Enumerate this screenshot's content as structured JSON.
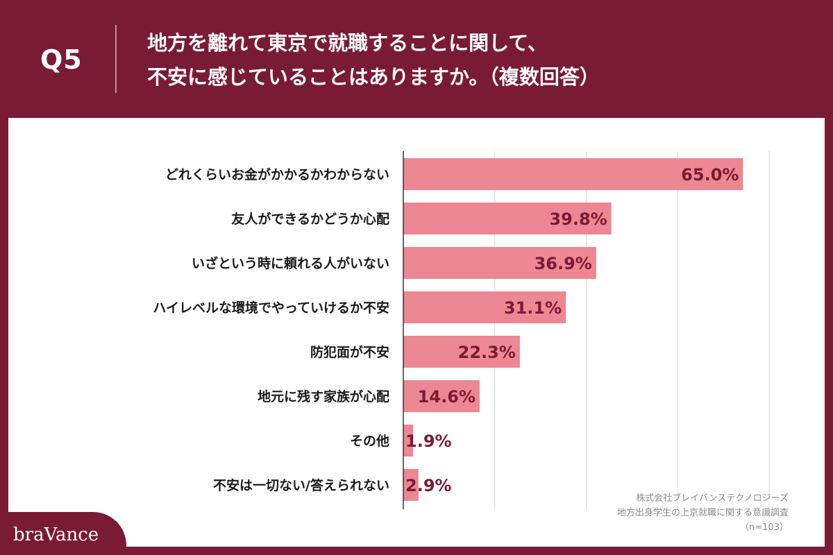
{
  "header": {
    "question_label": "Q5",
    "question_line1": "地方を離れて東京で就職することに関して、",
    "question_line2": "不安に感じていることはありますか。（複数回答）"
  },
  "chart_data": {
    "type": "bar",
    "orientation": "horizontal",
    "categories": [
      "どれくらいお金がかかるかわからない",
      "友人ができるかどうか心配",
      "いざという時に頼れる人がいない",
      "ハイレベルな環境でやっていけるか不安",
      "防犯面が不安",
      "地元に残す家族が心配",
      "その他",
      "不安は一切ない/答えられない"
    ],
    "values": [
      65.0,
      39.8,
      36.9,
      31.1,
      22.3,
      14.6,
      1.9,
      2.9
    ],
    "value_labels": [
      "65.0%",
      "39.8%",
      "36.9%",
      "31.1%",
      "22.3%",
      "14.6%",
      "1.9%",
      "2.9%"
    ],
    "xlim": [
      0,
      70
    ],
    "grid": true,
    "bar_color": "#ed8793",
    "label_color": "#7a1b35"
  },
  "footnote": {
    "line1": "株式会社ブレイバンステクノロジーズ",
    "line2": "地方出身学生の上京就職に関する意識調査",
    "line3": "（n=103）"
  },
  "brand": {
    "name": "braVance"
  },
  "colors": {
    "background": "#7a1b35",
    "panel": "#ffffff"
  }
}
